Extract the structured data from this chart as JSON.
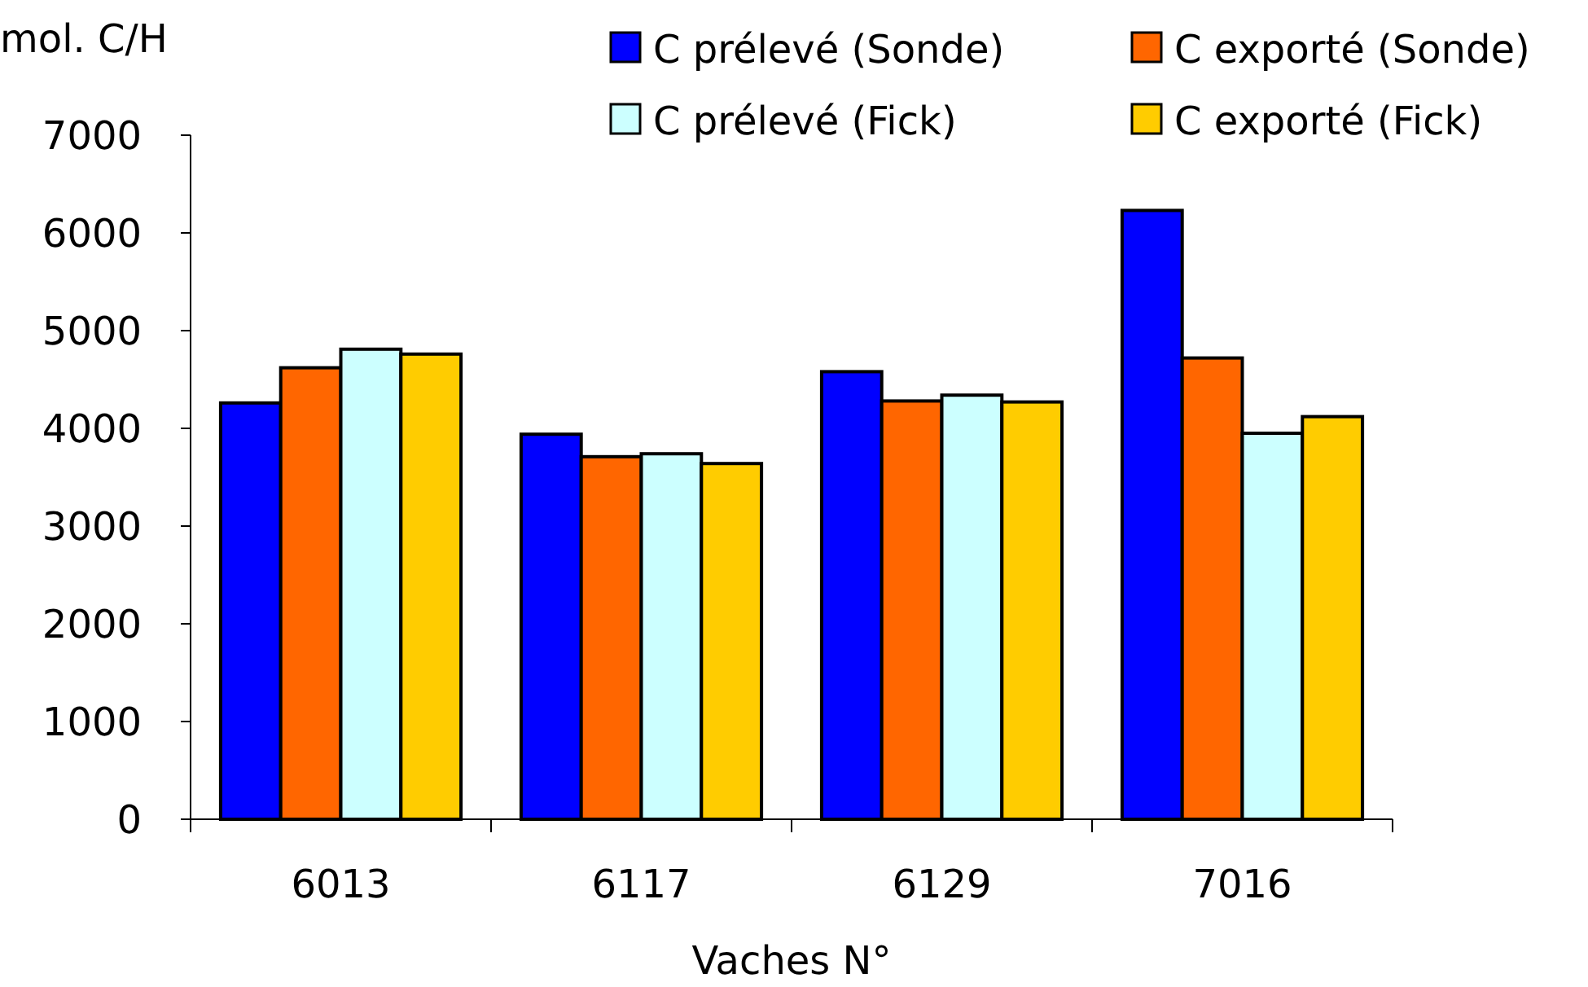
{
  "chart_data": {
    "type": "bar",
    "ylabel": "mol. C/H",
    "xlabel": "Vaches N°",
    "categories": [
      "6013",
      "6117",
      "6129",
      "7016"
    ],
    "series": [
      {
        "name": "C prélevé (Sonde)",
        "color": "#0000ff",
        "values": [
          4260,
          3940,
          4580,
          6230
        ]
      },
      {
        "name": "C exporté (Sonde)",
        "color": "#ff6600",
        "values": [
          4620,
          3710,
          4280,
          4720
        ]
      },
      {
        "name": "C prélevé (Fick)",
        "color": "#ccffff",
        "values": [
          4810,
          3740,
          4340,
          3950
        ]
      },
      {
        "name": "C exporté (Fick)",
        "color": "#ffcc00",
        "values": [
          4760,
          3640,
          4270,
          4120
        ]
      }
    ],
    "ylim": [
      0,
      7000
    ],
    "yticks": [
      0,
      1000,
      2000,
      3000,
      4000,
      5000,
      6000,
      7000
    ],
    "grid": false,
    "legend": "top right"
  }
}
